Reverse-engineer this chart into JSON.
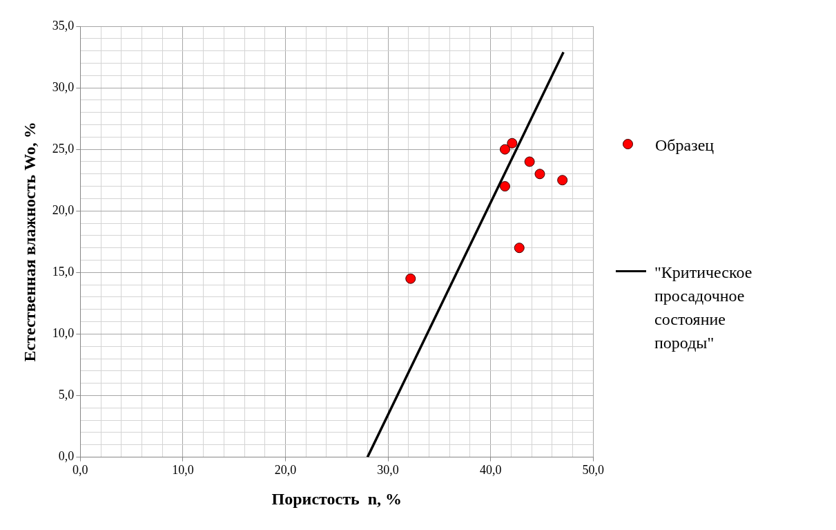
{
  "chart_data": {
    "type": "scatter",
    "xlabel": "Пористость  n, %",
    "ylabel": "Естественная влажность Wo, %",
    "xlim": [
      0,
      50
    ],
    "ylim": [
      0,
      35
    ],
    "xticks": [
      {
        "value": 0,
        "label": "0,0"
      },
      {
        "value": 2,
        "label": null
      },
      {
        "value": 4,
        "label": null
      },
      {
        "value": 6,
        "label": null
      },
      {
        "value": 8,
        "label": null
      },
      {
        "value": 10,
        "label": "10,0"
      },
      {
        "value": 12,
        "label": null
      },
      {
        "value": 14,
        "label": null
      },
      {
        "value": 16,
        "label": null
      },
      {
        "value": 18,
        "label": null
      },
      {
        "value": 20,
        "label": "20,0"
      },
      {
        "value": 22,
        "label": null
      },
      {
        "value": 24,
        "label": null
      },
      {
        "value": 26,
        "label": null
      },
      {
        "value": 28,
        "label": null
      },
      {
        "value": 30,
        "label": "30,0"
      },
      {
        "value": 32,
        "label": null
      },
      {
        "value": 34,
        "label": null
      },
      {
        "value": 36,
        "label": null
      },
      {
        "value": 38,
        "label": null
      },
      {
        "value": 40,
        "label": "40,0"
      },
      {
        "value": 42,
        "label": null
      },
      {
        "value": 44,
        "label": null
      },
      {
        "value": 46,
        "label": null
      },
      {
        "value": 48,
        "label": null
      },
      {
        "value": 50,
        "label": "50,0"
      }
    ],
    "yticks": [
      {
        "value": 0,
        "label": "0,0"
      },
      {
        "value": 1,
        "label": null
      },
      {
        "value": 2,
        "label": null
      },
      {
        "value": 3,
        "label": null
      },
      {
        "value": 4,
        "label": null
      },
      {
        "value": 5,
        "label": "5,0"
      },
      {
        "value": 6,
        "label": null
      },
      {
        "value": 7,
        "label": null
      },
      {
        "value": 8,
        "label": null
      },
      {
        "value": 9,
        "label": null
      },
      {
        "value": 10,
        "label": "10,0"
      },
      {
        "value": 11,
        "label": null
      },
      {
        "value": 12,
        "label": null
      },
      {
        "value": 13,
        "label": null
      },
      {
        "value": 14,
        "label": null
      },
      {
        "value": 15,
        "label": "15,0"
      },
      {
        "value": 16,
        "label": null
      },
      {
        "value": 17,
        "label": null
      },
      {
        "value": 18,
        "label": null
      },
      {
        "value": 19,
        "label": null
      },
      {
        "value": 20,
        "label": "20,0"
      },
      {
        "value": 21,
        "label": null
      },
      {
        "value": 22,
        "label": null
      },
      {
        "value": 23,
        "label": null
      },
      {
        "value": 24,
        "label": null
      },
      {
        "value": 25,
        "label": "25,0"
      },
      {
        "value": 26,
        "label": null
      },
      {
        "value": 27,
        "label": null
      },
      {
        "value": 28,
        "label": null
      },
      {
        "value": 29,
        "label": null
      },
      {
        "value": 30,
        "label": "30,0"
      },
      {
        "value": 31,
        "label": null
      },
      {
        "value": 32,
        "label": null
      },
      {
        "value": 33,
        "label": null
      },
      {
        "value": 34,
        "label": null
      },
      {
        "value": 35,
        "label": "35,0"
      }
    ],
    "grid": true,
    "legend": "right",
    "marker": "circle",
    "series": [
      {
        "name": "Образец",
        "color": "#ff0000",
        "x": [
          32.2,
          41.4,
          42.1,
          43.8,
          44.8,
          47.0,
          41.4,
          42.8
        ],
        "values": [
          14.5,
          25.0,
          25.5,
          24.0,
          23.0,
          22.5,
          22.0,
          17.0
        ]
      },
      {
        "name": "\"Критическое просадочное состояние породы\"",
        "type": "line",
        "color": "#000000",
        "x": [
          28,
          47.1
        ],
        "values": [
          0,
          32.9
        ],
        "marker": "none"
      }
    ]
  }
}
